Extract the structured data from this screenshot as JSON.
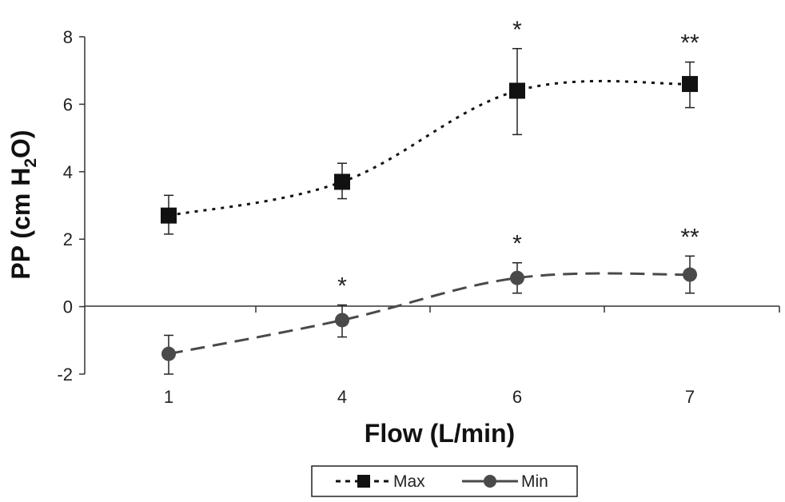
{
  "chart_data": {
    "type": "line",
    "xlabel": "Flow (L/min)",
    "ylabel": {
      "prefix": "PP (cm H",
      "subscript": "2",
      "suffix": "O)"
    },
    "categories": [
      "1",
      "4",
      "6",
      "7"
    ],
    "ylim": [
      -2,
      8
    ],
    "yticks": [
      "-2",
      "0",
      "2",
      "4",
      "6",
      "8"
    ],
    "grid": false,
    "legend_position": "bottom-center",
    "series": [
      {
        "name": "Max",
        "values": [
          2.7,
          3.7,
          6.4,
          6.6
        ],
        "err_low": [
          2.15,
          3.2,
          5.1,
          5.9
        ],
        "err_high": [
          3.3,
          4.25,
          7.65,
          7.25
        ],
        "annotations": [
          "",
          "",
          "*",
          "**"
        ],
        "marker": "square",
        "line_style": "dotted",
        "color": "#111111"
      },
      {
        "name": "Min",
        "values": [
          -1.4,
          -0.4,
          0.85,
          0.95
        ],
        "err_low": [
          -2.0,
          -0.9,
          0.4,
          0.4
        ],
        "err_high": [
          -0.85,
          0.05,
          1.3,
          1.5
        ],
        "annotations": [
          "",
          "*",
          "*",
          "**"
        ],
        "marker": "circle",
        "line_style": "dashed",
        "color": "#4a4a4a"
      }
    ]
  }
}
